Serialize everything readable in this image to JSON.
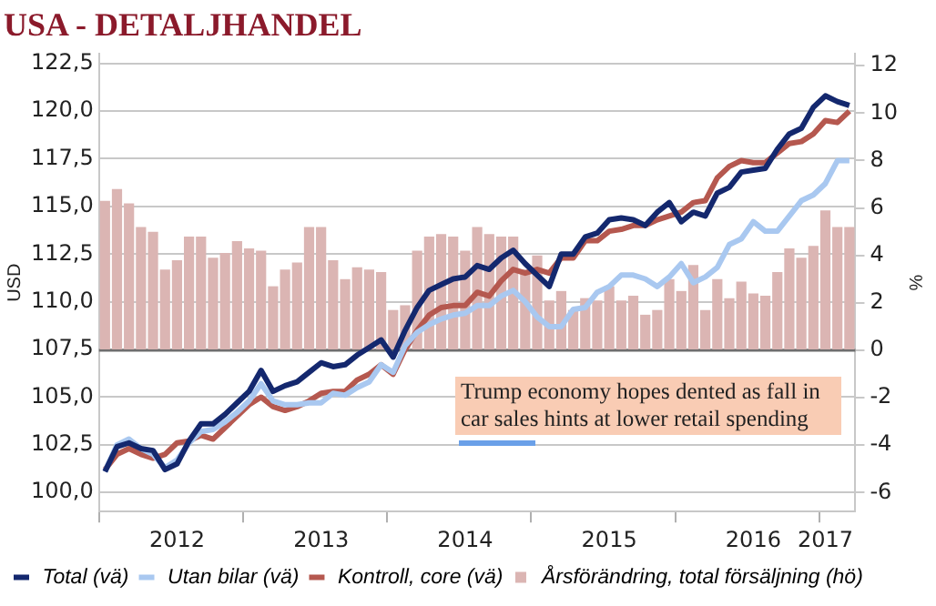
{
  "chart_data": {
    "type": "line",
    "title": "USA - DETALJHANDEL",
    "ylabel": "USD",
    "y2label": "%",
    "categories": [
      null,
      null,
      null,
      null,
      null,
      null,
      "2012",
      null,
      null,
      null,
      null,
      null,
      null,
      null,
      null,
      null,
      null,
      null,
      "2013",
      null,
      null,
      null,
      null,
      null,
      null,
      null,
      null,
      null,
      null,
      null,
      "2014",
      null,
      null,
      null,
      null,
      null,
      null,
      null,
      null,
      null,
      null,
      null,
      "2015",
      null,
      null,
      null,
      null,
      null,
      null,
      null,
      null,
      null,
      null,
      null,
      "2016",
      null,
      null,
      null,
      null,
      null,
      "2017",
      null,
      null
    ],
    "series": [
      {
        "name": "Total (vä)",
        "color": "#14286e",
        "values": [
          101.1,
          102.4,
          102.6,
          102.3,
          102.2,
          101.2,
          101.5,
          102.7,
          103.6,
          103.6,
          104.1,
          104.7,
          105.3,
          106.4,
          105.3,
          105.6,
          105.8,
          106.3,
          106.8,
          106.6,
          106.7,
          107.2,
          107.6,
          108.0,
          107.1,
          108.5,
          109.7,
          110.6,
          110.9,
          111.2,
          111.3,
          111.9,
          111.7,
          112.3,
          112.7,
          112.0,
          111.4,
          110.8,
          112.5,
          112.5,
          113.4,
          113.6,
          114.3,
          114.4,
          114.3,
          114.0,
          114.7,
          115.2,
          114.2,
          114.7,
          114.5,
          115.7,
          116.0,
          116.8,
          116.9,
          117.0,
          118.0,
          118.8,
          119.1,
          120.2,
          120.8,
          120.5,
          120.3
        ]
      },
      {
        "name": "Utan bilar (vä)",
        "color": "#a9c8f0",
        "values": [
          101.1,
          102.5,
          102.8,
          102.3,
          102.0,
          101.3,
          101.7,
          102.6,
          103.2,
          103.3,
          103.7,
          104.2,
          104.8,
          105.7,
          104.8,
          104.6,
          104.6,
          104.7,
          104.7,
          105.2,
          105.1,
          105.5,
          105.8,
          106.7,
          106.3,
          107.7,
          108.4,
          108.8,
          109.1,
          109.3,
          109.4,
          109.8,
          109.8,
          110.3,
          110.6,
          110.0,
          109.2,
          108.7,
          108.7,
          109.6,
          109.7,
          110.5,
          110.8,
          111.4,
          111.4,
          111.2,
          110.8,
          111.3,
          112.0,
          111.0,
          111.3,
          111.8,
          113.0,
          113.3,
          114.2,
          113.7,
          113.7,
          114.5,
          115.3,
          115.6,
          116.2,
          117.4,
          117.4
        ]
      },
      {
        "name": "Kontroll, core (vä)",
        "color": "#b5584f",
        "values": [
          101.2,
          102.0,
          102.3,
          102.0,
          101.8,
          102.0,
          102.6,
          102.7,
          103.0,
          102.8,
          103.4,
          104.0,
          104.6,
          105.0,
          104.5,
          104.3,
          104.5,
          104.8,
          105.2,
          105.3,
          105.3,
          105.9,
          106.2,
          106.7,
          106.2,
          107.5,
          108.5,
          109.3,
          109.7,
          109.8,
          109.8,
          110.5,
          110.3,
          111.1,
          111.7,
          111.5,
          111.7,
          111.5,
          112.3,
          112.3,
          113.2,
          113.2,
          113.7,
          113.8,
          114.0,
          114.0,
          114.3,
          114.5,
          114.7,
          115.2,
          115.3,
          116.5,
          117.1,
          117.4,
          117.3,
          117.3,
          117.8,
          118.3,
          118.4,
          118.8,
          119.5,
          119.4,
          120.0
        ]
      },
      {
        "name": "Årsförändring, total försäljning (hö)",
        "color": "#dbb5b3",
        "type": "bar",
        "axis": "y2",
        "values": [
          6.3,
          6.8,
          6.2,
          5.2,
          5.0,
          3.4,
          3.8,
          4.8,
          4.8,
          3.9,
          4.1,
          4.6,
          4.3,
          4.2,
          2.7,
          3.4,
          3.7,
          5.2,
          5.2,
          3.8,
          3.0,
          3.5,
          3.4,
          3.3,
          1.7,
          1.9,
          4.2,
          4.8,
          4.9,
          4.8,
          4.2,
          5.2,
          4.9,
          4.8,
          4.8,
          3.4,
          4.0,
          2.1,
          2.5,
          1.7,
          2.2,
          2.1,
          2.7,
          2.1,
          2.3,
          1.5,
          1.7,
          3.0,
          2.5,
          3.6,
          1.7,
          3.0,
          2.2,
          2.9,
          2.4,
          2.3,
          3.3,
          4.3,
          3.9,
          4.4,
          5.9,
          5.2,
          5.2
        ]
      }
    ],
    "ylim": [
      99,
      123
    ],
    "yticks": [
      {
        "value": 100,
        "label": "100,0"
      },
      {
        "value": 102.5,
        "label": "102,5"
      },
      {
        "value": 105,
        "label": "105,0"
      },
      {
        "value": 107.5,
        "label": "107,5"
      },
      {
        "value": 110,
        "label": "110,0"
      },
      {
        "value": 112.5,
        "label": "112,5"
      },
      {
        "value": 115,
        "label": "115,0"
      },
      {
        "value": 117.5,
        "label": "117,5"
      },
      {
        "value": 120,
        "label": "120,0"
      },
      {
        "value": 122.5,
        "label": "122,5"
      }
    ],
    "y2lim": [
      -6.8,
      12.5
    ],
    "y2ticks": [
      -6,
      -4,
      -2,
      0,
      2,
      4,
      6,
      8,
      10,
      12
    ],
    "ref_lines": [
      {
        "axis": "y2",
        "value": 0,
        "color": "#6e6e6e"
      }
    ],
    "annotations": [
      "Trump economy hopes dented as fall in car sales hints at lower retail spending"
    ],
    "grid": "y",
    "legend": "bottom"
  }
}
